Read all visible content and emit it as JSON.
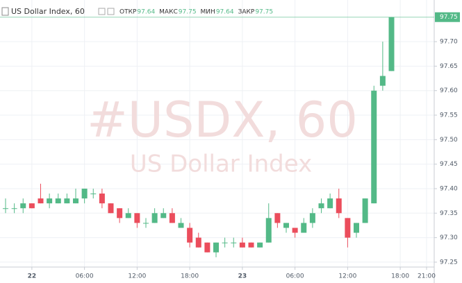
{
  "chart_data": {
    "type": "candlestick",
    "title": "US Dollar Index, 60",
    "legend_labels": [
      "ОТКР",
      "МАКС",
      "МИН",
      "ЗАКР"
    ],
    "legend_values": [
      97.64,
      97.75,
      97.64,
      97.75
    ],
    "watermark": "#USDX, 60",
    "watermark_subtitle": "US Dollar Index",
    "last_price": 97.75,
    "up_color": "#53b987",
    "down_color": "#eb4d5c",
    "grid": true,
    "categories": [
      null,
      null,
      null,
      "22",
      null,
      null,
      null,
      null,
      null,
      "06:00",
      null,
      null,
      null,
      null,
      null,
      "12:00",
      null,
      null,
      null,
      null,
      null,
      "18:00",
      null,
      null,
      null,
      null,
      null,
      "23",
      null,
      null,
      null,
      null,
      null,
      "06:00",
      null,
      null,
      null,
      null,
      null,
      "12:00",
      null,
      null,
      null,
      null,
      null,
      "18:00",
      null,
      null,
      "21:00"
    ],
    "open": [
      97.36,
      97.36,
      97.36,
      97.37,
      97.38,
      97.37,
      97.37,
      97.37,
      97.37,
      97.38,
      97.39,
      97.39,
      97.37,
      97.36,
      97.34,
      97.35,
      97.33,
      97.33,
      97.34,
      97.35,
      97.32,
      97.32,
      97.3,
      97.29,
      97.27,
      97.29,
      97.29,
      97.29,
      97.29,
      97.28,
      97.29,
      97.35,
      97.32,
      97.32,
      97.31,
      97.33,
      97.36,
      97.36,
      97.38,
      97.34,
      97.31,
      97.33,
      97.37,
      97.61,
      97.64,
      null,
      null,
      null,
      null
    ],
    "high": [
      97.38,
      97.37,
      97.38,
      97.37,
      97.41,
      97.39,
      97.39,
      97.39,
      97.4,
      97.4,
      97.4,
      97.4,
      97.37,
      97.36,
      97.36,
      97.35,
      97.34,
      97.36,
      97.36,
      97.36,
      97.34,
      97.33,
      97.31,
      97.29,
      97.29,
      97.3,
      97.3,
      97.3,
      97.29,
      97.29,
      97.37,
      97.35,
      97.33,
      97.32,
      97.34,
      97.36,
      97.38,
      97.39,
      97.4,
      97.34,
      97.33,
      97.38,
      97.61,
      97.7,
      97.75,
      null,
      null,
      null,
      null
    ],
    "low": [
      97.35,
      97.35,
      97.35,
      97.36,
      97.37,
      97.36,
      97.37,
      97.37,
      97.37,
      97.37,
      97.38,
      97.36,
      97.35,
      97.33,
      97.34,
      97.32,
      97.32,
      97.33,
      97.34,
      97.33,
      97.32,
      97.28,
      97.28,
      97.27,
      97.26,
      97.28,
      97.28,
      97.28,
      97.28,
      97.28,
      97.29,
      97.32,
      97.31,
      97.3,
      97.31,
      97.32,
      97.35,
      97.36,
      97.34,
      97.28,
      97.3,
      97.33,
      97.37,
      97.6,
      97.64,
      null,
      null,
      null,
      null
    ],
    "close": [
      97.36,
      97.36,
      97.37,
      97.36,
      97.37,
      97.38,
      97.38,
      97.38,
      97.38,
      97.4,
      97.39,
      97.37,
      97.35,
      97.34,
      97.35,
      97.33,
      97.33,
      97.35,
      97.35,
      97.33,
      97.33,
      97.29,
      97.28,
      97.27,
      97.29,
      97.29,
      97.29,
      97.28,
      97.28,
      97.29,
      97.34,
      97.33,
      97.33,
      97.31,
      97.33,
      97.35,
      97.37,
      97.38,
      97.35,
      97.3,
      97.33,
      97.38,
      97.6,
      97.63,
      97.75,
      null,
      null,
      null,
      null
    ],
    "ylim": [
      97.24,
      97.785
    ],
    "yticks": [
      97.25,
      {
        "value": 97.3,
        "label": "97.30"
      },
      97.35,
      {
        "value": 97.4,
        "label": "97.40"
      },
      97.45,
      {
        "value": 97.5,
        "label": "97.50"
      },
      97.55,
      {
        "value": 97.6,
        "label": "97.60"
      },
      97.65,
      {
        "value": 97.7,
        "label": "97.70"
      }
    ]
  }
}
